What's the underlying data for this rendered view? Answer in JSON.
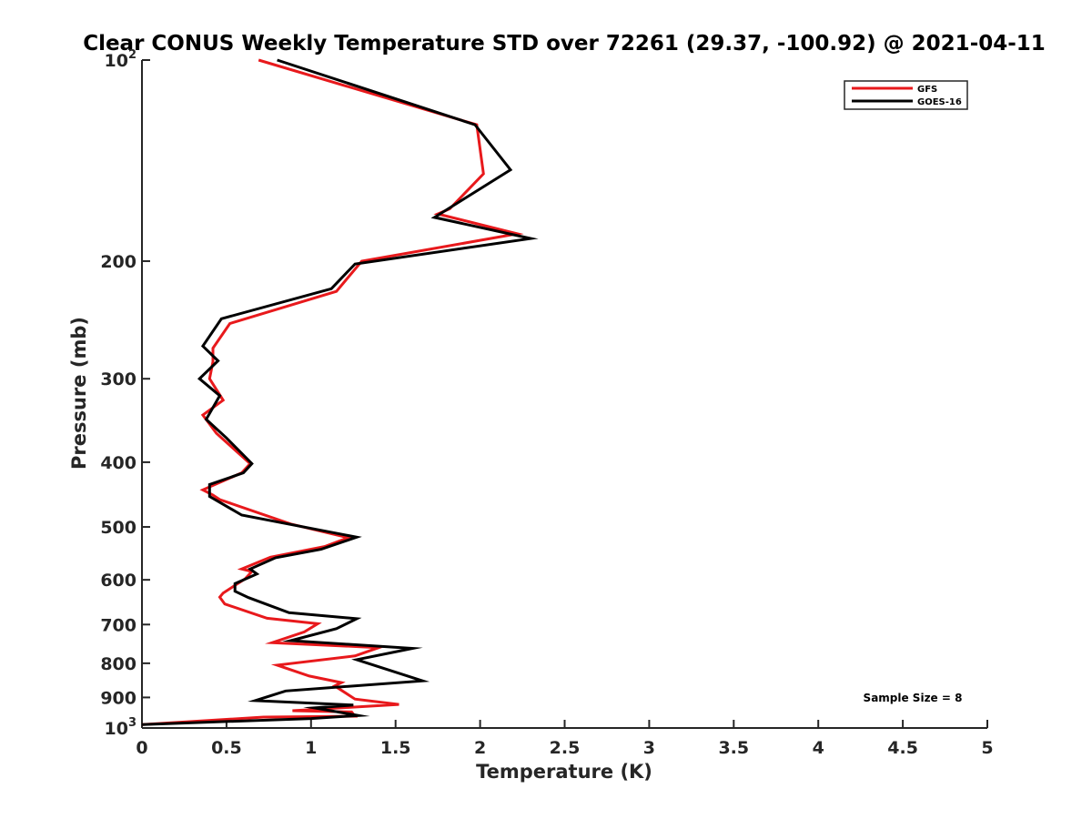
{
  "chart_data": {
    "type": "line",
    "title": "Clear CONUS Weekly Temperature STD over 72261 (29.37, -100.92) @ 2021-04-11",
    "xlabel": "Temperature (K)",
    "ylabel": "Pressure (mb)",
    "xlim": [
      0,
      5
    ],
    "ylim": [
      1000,
      100
    ],
    "y_scale": "log",
    "y_reversed": true,
    "grid": false,
    "legend_position": "top-right",
    "x_ticks": [
      {
        "value": 0,
        "label": "0"
      },
      {
        "value": 0.5,
        "label": "0.5"
      },
      {
        "value": 1,
        "label": "1"
      },
      {
        "value": 1.5,
        "label": "1.5"
      },
      {
        "value": 2,
        "label": "2"
      },
      {
        "value": 2.5,
        "label": "2.5"
      },
      {
        "value": 3,
        "label": "3"
      },
      {
        "value": 3.5,
        "label": "3.5"
      },
      {
        "value": 4,
        "label": "4"
      },
      {
        "value": 4.5,
        "label": "4.5"
      },
      {
        "value": 5,
        "label": "5"
      }
    ],
    "y_ticks": [
      {
        "value": 100,
        "base": "10",
        "exp": "2"
      },
      {
        "value": 200,
        "base": "200",
        "exp": ""
      },
      {
        "value": 300,
        "base": "300",
        "exp": ""
      },
      {
        "value": 400,
        "base": "400",
        "exp": ""
      },
      {
        "value": 500,
        "base": "500",
        "exp": ""
      },
      {
        "value": 600,
        "base": "600",
        "exp": ""
      },
      {
        "value": 700,
        "base": "700",
        "exp": ""
      },
      {
        "value": 800,
        "base": "800",
        "exp": ""
      },
      {
        "value": 900,
        "base": "900",
        "exp": ""
      },
      {
        "value": 1000,
        "base": "10",
        "exp": "3"
      }
    ],
    "series": [
      {
        "name": "GFS",
        "color": "#e8191c",
        "points": [
          [
            0.69,
            100
          ],
          [
            1.98,
            125
          ],
          [
            2.02,
            148
          ],
          [
            1.82,
            167
          ],
          [
            1.75,
            170
          ],
          [
            2.22,
            182
          ],
          [
            1.3,
            200
          ],
          [
            1.15,
            222
          ],
          [
            0.52,
            248
          ],
          [
            0.42,
            270
          ],
          [
            0.42,
            283
          ],
          [
            0.4,
            300
          ],
          [
            0.48,
            323
          ],
          [
            0.36,
            340
          ],
          [
            0.44,
            362
          ],
          [
            0.64,
            402
          ],
          [
            0.59,
            415
          ],
          [
            0.36,
            440
          ],
          [
            0.42,
            448
          ],
          [
            0.46,
            455
          ],
          [
            0.88,
            495
          ],
          [
            1.22,
            519
          ],
          [
            1.08,
            535
          ],
          [
            0.76,
            555
          ],
          [
            0.59,
            578
          ],
          [
            0.65,
            583
          ],
          [
            0.61,
            598
          ],
          [
            0.48,
            628
          ],
          [
            0.46,
            637
          ],
          [
            0.49,
            652
          ],
          [
            0.74,
            685
          ],
          [
            1.04,
            698
          ],
          [
            0.96,
            718
          ],
          [
            0.77,
            745
          ],
          [
            1.4,
            758
          ],
          [
            1.26,
            780
          ],
          [
            0.8,
            805
          ],
          [
            0.99,
            836
          ],
          [
            1.18,
            855
          ],
          [
            1.14,
            865
          ],
          [
            1.26,
            905
          ],
          [
            1.52,
            922
          ],
          [
            0.89,
            942
          ],
          [
            1.24,
            946
          ],
          [
            1.26,
            960
          ],
          [
            0.72,
            963
          ],
          [
            0.0,
            988
          ]
        ]
      },
      {
        "name": "GOES-16",
        "color": "#000000",
        "points": [
          [
            0.8,
            100
          ],
          [
            1.97,
            125
          ],
          [
            2.18,
            146
          ],
          [
            1.73,
            172
          ],
          [
            2.3,
            185
          ],
          [
            1.26,
            202
          ],
          [
            1.12,
            220
          ],
          [
            0.47,
            244
          ],
          [
            0.36,
            268
          ],
          [
            0.45,
            282
          ],
          [
            0.34,
            300
          ],
          [
            0.46,
            318
          ],
          [
            0.38,
            345
          ],
          [
            0.5,
            368
          ],
          [
            0.65,
            402
          ],
          [
            0.6,
            415
          ],
          [
            0.4,
            432
          ],
          [
            0.4,
            450
          ],
          [
            0.59,
            480
          ],
          [
            1.27,
            518
          ],
          [
            1.06,
            540
          ],
          [
            0.79,
            556
          ],
          [
            0.64,
            578
          ],
          [
            0.68,
            588
          ],
          [
            0.55,
            608
          ],
          [
            0.55,
            624
          ],
          [
            0.63,
            638
          ],
          [
            0.87,
            672
          ],
          [
            1.27,
            686
          ],
          [
            1.15,
            710
          ],
          [
            0.88,
            740
          ],
          [
            1.6,
            760
          ],
          [
            1.27,
            790
          ],
          [
            1.66,
            850
          ],
          [
            0.85,
            880
          ],
          [
            0.67,
            910
          ],
          [
            1.25,
            924
          ],
          [
            1.02,
            933
          ],
          [
            1.28,
            958
          ],
          [
            1.0,
            968
          ],
          [
            0.0,
            988
          ]
        ]
      }
    ],
    "annotation": "Sample Size = 8"
  }
}
